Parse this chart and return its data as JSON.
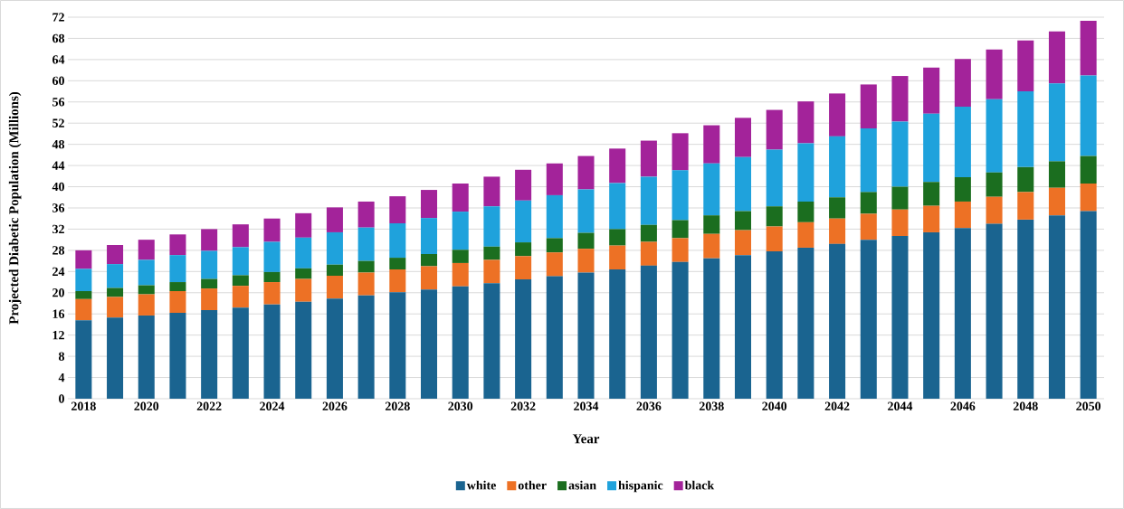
{
  "chart_data": {
    "type": "bar",
    "stacked": true,
    "xlabel": "Year",
    "ylabel": "Projected Diabetic Population (Millions)",
    "categories": [
      "2018",
      null,
      "2020",
      null,
      "2022",
      null,
      "2024",
      null,
      "2026",
      null,
      "2028",
      null,
      "2030",
      null,
      "2032",
      null,
      "2034",
      null,
      "2036",
      null,
      "2038",
      null,
      "2040",
      null,
      "2042",
      null,
      "2044",
      null,
      "2046",
      null,
      "2048",
      null,
      "2050"
    ],
    "series": [
      {
        "name": "white",
        "color": "#1a6490",
        "values": [
          14.8,
          15.3,
          15.7,
          16.2,
          16.7,
          17.2,
          17.8,
          18.3,
          18.9,
          19.5,
          20.1,
          20.6,
          21.2,
          21.8,
          22.5,
          23.1,
          23.8,
          24.4,
          25.1,
          25.8,
          26.5,
          27.1,
          27.8,
          28.5,
          29.2,
          30.0,
          30.7,
          31.4,
          32.2,
          33.0,
          33.8,
          34.6,
          35.4
        ]
      },
      {
        "name": "other",
        "color": "#ed7125",
        "values": [
          4.0,
          3.9,
          4.0,
          4.1,
          4.1,
          4.1,
          4.2,
          4.3,
          4.3,
          4.3,
          4.3,
          4.4,
          4.4,
          4.4,
          4.4,
          4.5,
          4.5,
          4.5,
          4.5,
          4.5,
          4.6,
          4.7,
          4.7,
          4.8,
          4.8,
          4.9,
          5.0,
          5.0,
          5.0,
          5.1,
          5.2,
          5.2,
          5.2
        ]
      },
      {
        "name": "asian",
        "color": "#1b6e1f",
        "values": [
          1.5,
          1.7,
          1.7,
          1.7,
          1.8,
          2.0,
          1.9,
          2.0,
          2.1,
          2.2,
          2.2,
          2.3,
          2.5,
          2.5,
          2.6,
          2.7,
          3.0,
          3.1,
          3.2,
          3.4,
          3.5,
          3.6,
          3.8,
          3.9,
          4.0,
          4.1,
          4.3,
          4.5,
          4.6,
          4.6,
          4.7,
          5.0,
          5.2
        ]
      },
      {
        "name": "hispanic",
        "color": "#1fa2dc",
        "values": [
          4.2,
          4.5,
          4.8,
          5.1,
          5.3,
          5.3,
          5.7,
          5.8,
          6.1,
          6.3,
          6.5,
          6.8,
          7.2,
          7.6,
          7.9,
          8.1,
          8.2,
          8.7,
          9.1,
          9.4,
          9.8,
          10.2,
          10.7,
          11.0,
          11.5,
          12.0,
          12.3,
          12.9,
          13.3,
          13.8,
          14.3,
          14.7,
          15.2
        ]
      },
      {
        "name": "black",
        "color": "#a3239a",
        "values": [
          3.5,
          3.6,
          3.8,
          3.9,
          4.1,
          4.3,
          4.4,
          4.6,
          4.7,
          4.9,
          5.1,
          5.3,
          5.3,
          5.6,
          5.8,
          6.0,
          6.3,
          6.5,
          6.8,
          7.0,
          7.2,
          7.4,
          7.5,
          7.9,
          8.1,
          8.3,
          8.6,
          8.7,
          9.0,
          9.4,
          9.6,
          9.8,
          10.3
        ]
      }
    ],
    "ylim": [
      0,
      72
    ],
    "yticks": [
      0,
      4,
      8,
      12,
      16,
      20,
      24,
      28,
      32,
      36,
      40,
      44,
      48,
      52,
      56,
      60,
      64,
      68,
      72
    ],
    "grid": "y",
    "legend": "bottom"
  }
}
